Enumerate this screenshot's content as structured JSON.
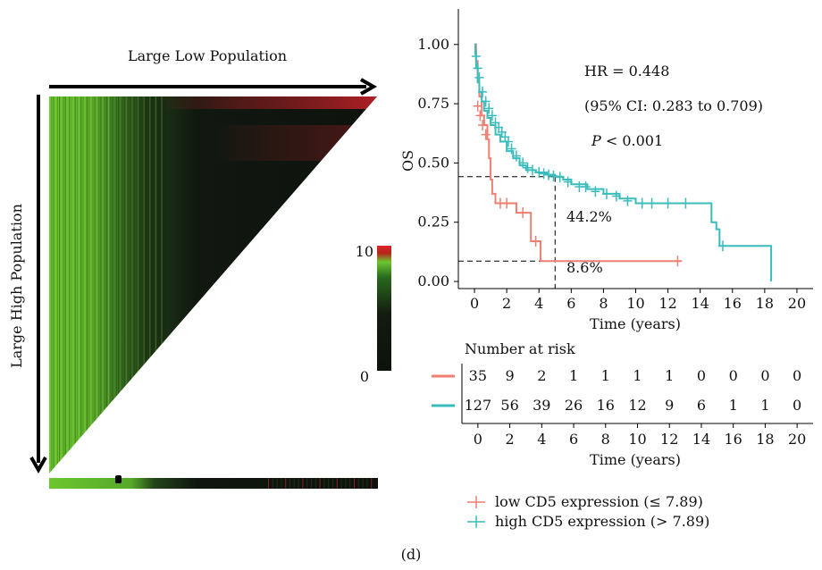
{
  "heatmap": {
    "top_label": "Large Low Population",
    "side_label": "Large High Population",
    "legend_max": "10",
    "legend_min": "0",
    "colors": {
      "low": "#0d120d",
      "high_green": "#6cc72e",
      "high_red": "#e0242c"
    }
  },
  "km": {
    "type": "line",
    "ylabel": "OS",
    "xlabel": "Time (years)",
    "xlim": [
      -1,
      21
    ],
    "ylim": [
      -0.03,
      1.15
    ],
    "xticks": [
      "0",
      "2",
      "4",
      "6",
      "8",
      "10",
      "12",
      "14",
      "16",
      "18",
      "20"
    ],
    "yticks": [
      "0.00",
      "0.25",
      "0.50",
      "0.75",
      "1.00"
    ],
    "hr_text": "HR = 0.448",
    "ci_text": "(95% CI: 0.283 to 0.709)",
    "p_italic": "P",
    "p_rest": " < 0.001",
    "annotation_high": "44.2%",
    "annotation_low": "8.6%",
    "ref_x": 5,
    "ref_y_high": 0.442,
    "ref_y_low": 0.086,
    "series": [
      {
        "name": "low CD5 expression (≤ 7.89)",
        "color": "#ef7f72",
        "points": [
          [
            0,
            1.0
          ],
          [
            0.1,
            0.93
          ],
          [
            0.2,
            0.85
          ],
          [
            0.3,
            0.78
          ],
          [
            0.45,
            0.7
          ],
          [
            0.6,
            0.66
          ],
          [
            0.8,
            0.6
          ],
          [
            0.9,
            0.52
          ],
          [
            1.0,
            0.43
          ],
          [
            1.1,
            0.37
          ],
          [
            1.3,
            0.33
          ],
          [
            2.5,
            0.33
          ],
          [
            2.6,
            0.29
          ],
          [
            3.4,
            0.29
          ],
          [
            3.5,
            0.17
          ],
          [
            4.0,
            0.17
          ],
          [
            4.1,
            0.086
          ],
          [
            12.8,
            0.086
          ]
        ],
        "censors": [
          [
            0.2,
            0.74
          ],
          [
            0.35,
            0.7
          ],
          [
            0.5,
            0.66
          ],
          [
            0.7,
            0.62
          ],
          [
            1.6,
            0.33
          ],
          [
            2.0,
            0.33
          ],
          [
            3.0,
            0.29
          ],
          [
            3.8,
            0.17
          ],
          [
            12.6,
            0.086
          ]
        ]
      },
      {
        "name": "high CD5 expression (> 7.89)",
        "color": "#3bbcbc",
        "points": [
          [
            0,
            1.0
          ],
          [
            0.05,
            0.96
          ],
          [
            0.1,
            0.9
          ],
          [
            0.2,
            0.84
          ],
          [
            0.3,
            0.8
          ],
          [
            0.45,
            0.76
          ],
          [
            0.6,
            0.72
          ],
          [
            0.8,
            0.69
          ],
          [
            1.0,
            0.66
          ],
          [
            1.3,
            0.62
          ],
          [
            1.6,
            0.59
          ],
          [
            2.0,
            0.55
          ],
          [
            2.4,
            0.52
          ],
          [
            2.8,
            0.49
          ],
          [
            3.2,
            0.47
          ],
          [
            3.8,
            0.46
          ],
          [
            4.5,
            0.45
          ],
          [
            5.0,
            0.442
          ],
          [
            5.5,
            0.43
          ],
          [
            6.0,
            0.41
          ],
          [
            7.0,
            0.39
          ],
          [
            8.0,
            0.37
          ],
          [
            9.0,
            0.35
          ],
          [
            10.0,
            0.33
          ],
          [
            14.6,
            0.33
          ],
          [
            14.7,
            0.25
          ],
          [
            15.0,
            0.22
          ],
          [
            15.2,
            0.15
          ],
          [
            18.4,
            0.15
          ],
          [
            18.4,
            0.0
          ]
        ],
        "censors": [
          [
            0.1,
            0.95
          ],
          [
            0.2,
            0.9
          ],
          [
            0.3,
            0.86
          ],
          [
            0.5,
            0.8
          ],
          [
            0.7,
            0.76
          ],
          [
            0.9,
            0.73
          ],
          [
            1.1,
            0.7
          ],
          [
            1.3,
            0.67
          ],
          [
            1.5,
            0.65
          ],
          [
            1.7,
            0.63
          ],
          [
            1.9,
            0.61
          ],
          [
            2.1,
            0.59
          ],
          [
            2.3,
            0.56
          ],
          [
            2.6,
            0.53
          ],
          [
            3.0,
            0.5
          ],
          [
            3.3,
            0.48
          ],
          [
            3.6,
            0.47
          ],
          [
            4.0,
            0.46
          ],
          [
            4.3,
            0.455
          ],
          [
            4.6,
            0.45
          ],
          [
            4.9,
            0.445
          ],
          [
            5.3,
            0.44
          ],
          [
            5.8,
            0.42
          ],
          [
            6.5,
            0.4
          ],
          [
            6.9,
            0.4
          ],
          [
            7.5,
            0.38
          ],
          [
            8.2,
            0.37
          ],
          [
            8.8,
            0.36
          ],
          [
            9.5,
            0.34
          ],
          [
            10.4,
            0.33
          ],
          [
            11.0,
            0.33
          ],
          [
            12.0,
            0.33
          ],
          [
            13.1,
            0.33
          ],
          [
            15.4,
            0.15
          ]
        ]
      }
    ]
  },
  "risk_table": {
    "title": "Number at risk",
    "rows": [
      {
        "color": "#ef7f72",
        "values": [
          "35",
          "9",
          "2",
          "1",
          "1",
          "1",
          "1",
          "0",
          "0",
          "0",
          "0"
        ]
      },
      {
        "color": "#3bbcbc",
        "values": [
          "127",
          "56",
          "39",
          "26",
          "16",
          "12",
          "9",
          "6",
          "1",
          "1",
          "0"
        ]
      }
    ],
    "xticks": [
      "0",
      "2",
      "4",
      "6",
      "8",
      "10",
      "12",
      "14",
      "16",
      "18",
      "20"
    ],
    "xlabel": "Time (years)"
  },
  "legend": [
    {
      "label": "low CD5 expression (≤ 7.89)",
      "color": "#ef7f72"
    },
    {
      "label": "high CD5 expression (> 7.89)",
      "color": "#3bbcbc"
    }
  ],
  "panel_label": "(d)"
}
